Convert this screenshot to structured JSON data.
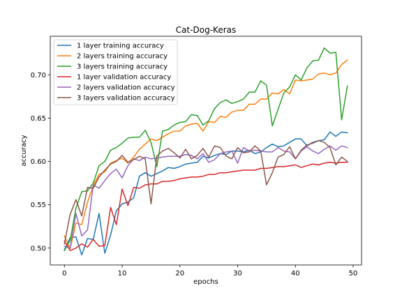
{
  "chart_data": {
    "type": "line",
    "title": "Cat-Dog-Keras",
    "xlabel": "epochs",
    "ylabel": "accuracy",
    "xlim": [
      -2.45,
      51.45
    ],
    "ylim": [
      0.4805,
      0.7445
    ],
    "xticks": [
      0,
      10,
      20,
      30,
      40,
      50
    ],
    "yticks": [
      0.5,
      0.55,
      0.6,
      0.65,
      0.7
    ],
    "xtick_labels": [
      "0",
      "10",
      "20",
      "30",
      "40",
      "50"
    ],
    "ytick_labels": [
      "0.50",
      "0.55",
      "0.60",
      "0.65",
      "0.70"
    ],
    "grid": false,
    "legend_position": "top-left",
    "x": [
      0,
      1,
      2,
      3,
      4,
      5,
      6,
      7,
      8,
      9,
      10,
      11,
      12,
      13,
      14,
      15,
      16,
      17,
      18,
      19,
      20,
      21,
      22,
      23,
      24,
      25,
      26,
      27,
      28,
      29,
      30,
      31,
      32,
      33,
      34,
      35,
      36,
      37,
      38,
      39,
      40,
      41,
      42,
      43,
      44,
      45,
      46,
      47,
      48,
      49
    ],
    "series": [
      {
        "name": "1 layer training accuracy",
        "color": "#1f77b4",
        "values": [
          0.498,
          0.512,
          0.513,
          0.492,
          0.511,
          0.51,
          0.54,
          0.494,
          0.515,
          0.543,
          0.551,
          0.553,
          0.558,
          0.583,
          0.587,
          0.583,
          0.586,
          0.589,
          0.593,
          0.592,
          0.594,
          0.597,
          0.598,
          0.599,
          0.606,
          0.604,
          0.607,
          0.609,
          0.608,
          0.612,
          0.612,
          0.611,
          0.613,
          0.609,
          0.611,
          0.616,
          0.62,
          0.617,
          0.618,
          0.622,
          0.626,
          0.626,
          0.618,
          0.622,
          0.624,
          0.625,
          0.634,
          0.629,
          0.634,
          0.633
        ]
      },
      {
        "name": "2 layers training accuracy",
        "color": "#ff7f0e",
        "values": [
          0.514,
          0.499,
          0.529,
          0.527,
          0.553,
          0.572,
          0.585,
          0.588,
          0.598,
          0.601,
          0.604,
          0.598,
          0.605,
          0.614,
          0.62,
          0.626,
          0.624,
          0.628,
          0.632,
          0.635,
          0.635,
          0.641,
          0.643,
          0.644,
          0.635,
          0.646,
          0.645,
          0.652,
          0.651,
          0.657,
          0.659,
          0.659,
          0.666,
          0.666,
          0.672,
          0.672,
          0.679,
          0.678,
          0.683,
          0.678,
          0.694,
          0.693,
          0.694,
          0.695,
          0.701,
          0.702,
          0.7,
          0.702,
          0.712,
          0.717
        ]
      },
      {
        "name": "3 layers training accuracy",
        "color": "#2ca02c",
        "values": [
          0.497,
          0.509,
          0.546,
          0.565,
          0.566,
          0.575,
          0.595,
          0.6,
          0.613,
          0.616,
          0.621,
          0.627,
          0.628,
          0.628,
          0.636,
          0.622,
          0.594,
          0.635,
          0.637,
          0.642,
          0.645,
          0.646,
          0.654,
          0.653,
          0.642,
          0.647,
          0.661,
          0.668,
          0.671,
          0.667,
          0.669,
          0.672,
          0.68,
          0.68,
          0.693,
          0.688,
          0.641,
          0.66,
          0.679,
          0.686,
          0.7,
          0.694,
          0.708,
          0.716,
          0.717,
          0.731,
          0.725,
          0.726,
          0.648,
          0.687
        ]
      },
      {
        "name": "1 layer validation accuracy",
        "color": "#d62728",
        "values": [
          0.508,
          0.497,
          0.5,
          0.505,
          0.501,
          0.51,
          0.502,
          0.503,
          0.547,
          0.527,
          0.568,
          0.549,
          0.57,
          0.569,
          0.573,
          0.574,
          0.574,
          0.577,
          0.577,
          0.578,
          0.58,
          0.581,
          0.582,
          0.582,
          0.583,
          0.585,
          0.585,
          0.587,
          0.587,
          0.588,
          0.589,
          0.59,
          0.59,
          0.59,
          0.592,
          0.592,
          0.593,
          0.594,
          0.594,
          0.595,
          0.596,
          0.593,
          0.595,
          0.597,
          0.596,
          0.598,
          0.599,
          0.598,
          0.599,
          0.599
        ]
      },
      {
        "name": "2 layers validation accuracy",
        "color": "#9467bd",
        "values": [
          0.502,
          0.5,
          0.54,
          0.514,
          0.521,
          0.573,
          0.569,
          0.578,
          0.586,
          0.591,
          0.581,
          0.595,
          0.603,
          0.601,
          0.605,
          0.603,
          0.604,
          0.605,
          0.606,
          0.606,
          0.606,
          0.608,
          0.607,
          0.603,
          0.609,
          0.599,
          0.602,
          0.609,
          0.611,
          0.612,
          0.598,
          0.616,
          0.612,
          0.613,
          0.612,
          0.611,
          0.611,
          0.616,
          0.612,
          0.611,
          0.603,
          0.612,
          0.617,
          0.612,
          0.609,
          0.614,
          0.618,
          0.613,
          0.618,
          0.616
        ]
      },
      {
        "name": "3 layers validation accuracy",
        "color": "#8c564b",
        "values": [
          0.505,
          0.539,
          0.556,
          0.537,
          0.57,
          0.569,
          0.582,
          0.59,
          0.597,
          0.6,
          0.607,
          0.599,
          0.602,
          0.606,
          0.603,
          0.551,
          0.606,
          0.612,
          0.615,
          0.61,
          0.604,
          0.614,
          0.603,
          0.607,
          0.615,
          0.605,
          0.618,
          0.616,
          0.606,
          0.603,
          0.616,
          0.61,
          0.611,
          0.618,
          0.612,
          0.573,
          0.587,
          0.605,
          0.608,
          0.617,
          0.603,
          0.613,
          0.619,
          0.621,
          0.624,
          0.622,
          0.616,
          0.596,
          0.605,
          0.6
        ]
      }
    ]
  }
}
